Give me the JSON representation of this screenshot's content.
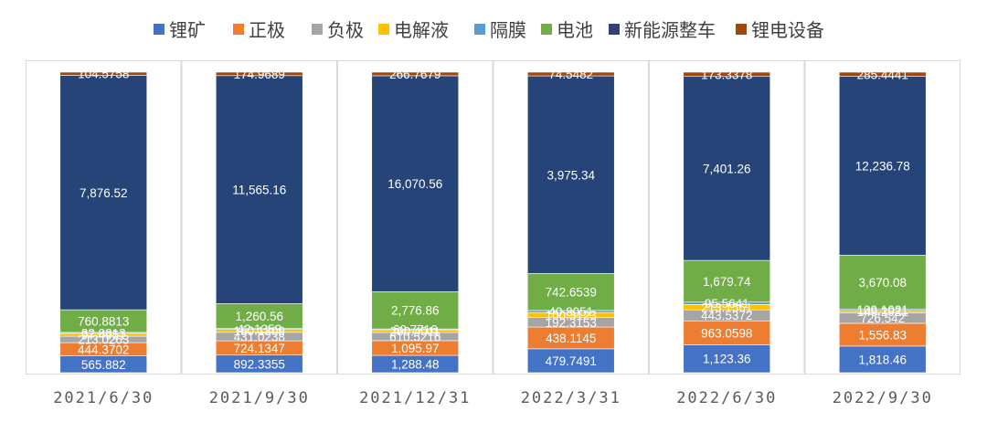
{
  "chart_data": {
    "type": "bar",
    "stacked": true,
    "normalized": true,
    "title": "",
    "xlabel": "",
    "ylabel": "",
    "legend_position": "top",
    "categories": [
      "2021/6/30",
      "2021/9/30",
      "2021/12/31",
      "2022/3/31",
      "2022/6/30",
      "2022/9/30"
    ],
    "series": [
      {
        "name": "锂矿",
        "color": "#4472C4",
        "values": [
          565.882,
          892.3355,
          1288.48,
          479.7491,
          1123.36,
          1818.46
        ],
        "labels": [
          "565.882",
          "892.3355",
          "1,288.48",
          "479.7491",
          "1,123.36",
          "1,818.46"
        ]
      },
      {
        "name": "正极",
        "color": "#ED7D31",
        "values": [
          444.3702,
          724.1347,
          1095.97,
          438.1145,
          963.0598,
          1556.83
        ],
        "labels": [
          "444.3702",
          "724.1347",
          "1,095.97",
          "438.1145",
          "963.0598",
          "1,556.83"
        ]
      },
      {
        "name": "负极",
        "color": "#A5A5A5",
        "values": [
          213.0263,
          431.0238,
          610.5216,
          192.3153,
          443.5372,
          726.542
        ],
        "labels": [
          "213.0263",
          "431.0238",
          "610.5216",
          "192.3153",
          "443.5372",
          "726.542"
        ]
      },
      {
        "name": "电解液",
        "color": "#FFC000",
        "values": [
          97.4951,
          150.1309,
          200.4011,
          100.3123,
          213.1561,
          149.2921
        ],
        "labels": [
          "97.4951",
          "150.1309",
          "200.4011",
          "100.3123",
          "213.1561",
          "149.2921"
        ]
      },
      {
        "name": "隔膜",
        "color": "#5B9BD5",
        "values": [
          32.0813,
          42.1359,
          60.7716,
          40.8051,
          95.5641,
          109.1021
        ],
        "labels": [
          "32.0813",
          "42.1359",
          "60.7716",
          "40.8051",
          "95.5641",
          "109.1021"
        ]
      },
      {
        "name": "电池",
        "color": "#70AD47",
        "values": [
          760.8813,
          1260.56,
          2776.86,
          742.6539,
          1679.74,
          3670.08
        ],
        "labels": [
          "760.8813",
          "1,260.56",
          "2,776.86",
          "742.6539",
          "1,679.74",
          "3,670.08"
        ]
      },
      {
        "name": "新能源整车",
        "color": "#264478",
        "values": [
          7876.52,
          11565.16,
          16070.56,
          3975.34,
          7401.26,
          12236.78
        ],
        "labels": [
          "7,876.52",
          "11,565.16",
          "16,070.56",
          "3,975.34",
          "7,401.26",
          "12,236.78"
        ]
      },
      {
        "name": "锂电设备",
        "color": "#9E480E",
        "values": [
          104.5758,
          174.9689,
          266.7679,
          74.5482,
          173.3378,
          285.4441
        ],
        "labels": [
          "104.5758",
          "174.9689",
          "266.7679",
          "74.5482",
          "173.3378",
          "285.4441"
        ]
      }
    ]
  }
}
